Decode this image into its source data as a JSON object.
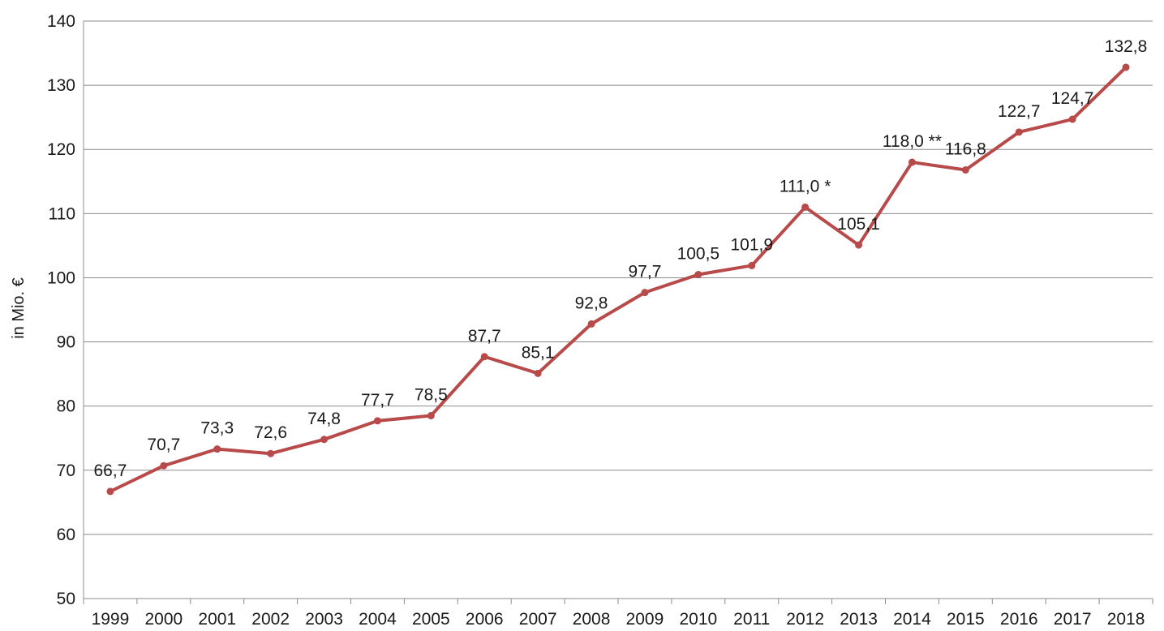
{
  "chart_data": {
    "type": "line",
    "ylabel": "in Mio. €",
    "xlabel": "",
    "ylim": [
      50,
      140
    ],
    "yticks": [
      "50",
      "60",
      "70",
      "80",
      "90",
      "100",
      "110",
      "120",
      "130",
      "140"
    ],
    "categories": [
      "1999",
      "2000",
      "2001",
      "2002",
      "2003",
      "2004",
      "2005",
      "2006",
      "2007",
      "2008",
      "2009",
      "2010",
      "2011",
      "2012",
      "2013",
      "2014",
      "2015",
      "2016",
      "2017",
      "2018"
    ],
    "series": [
      {
        "values": [
          66.7,
          70.7,
          73.3,
          72.6,
          74.8,
          77.7,
          78.5,
          87.7,
          85.1,
          92.8,
          97.7,
          100.5,
          101.9,
          111.0,
          105.1,
          118.0,
          116.8,
          122.7,
          124.7,
          132.8
        ],
        "labels": [
          "66,7",
          "70,7",
          "73,3",
          "72,6",
          "74,8",
          "77,7",
          "78,5",
          "87,7",
          "85,1",
          "92,8",
          "97,7",
          "100,5",
          "101,9",
          "111,0 *",
          "105,1",
          "118,0 **",
          "116,8",
          "122,7",
          "124,7",
          "132,8"
        ],
        "color": "#b84a4a"
      }
    ],
    "grid": true,
    "gridline_color": "#8c8c8c",
    "axis_color": "#8c8c8c"
  }
}
